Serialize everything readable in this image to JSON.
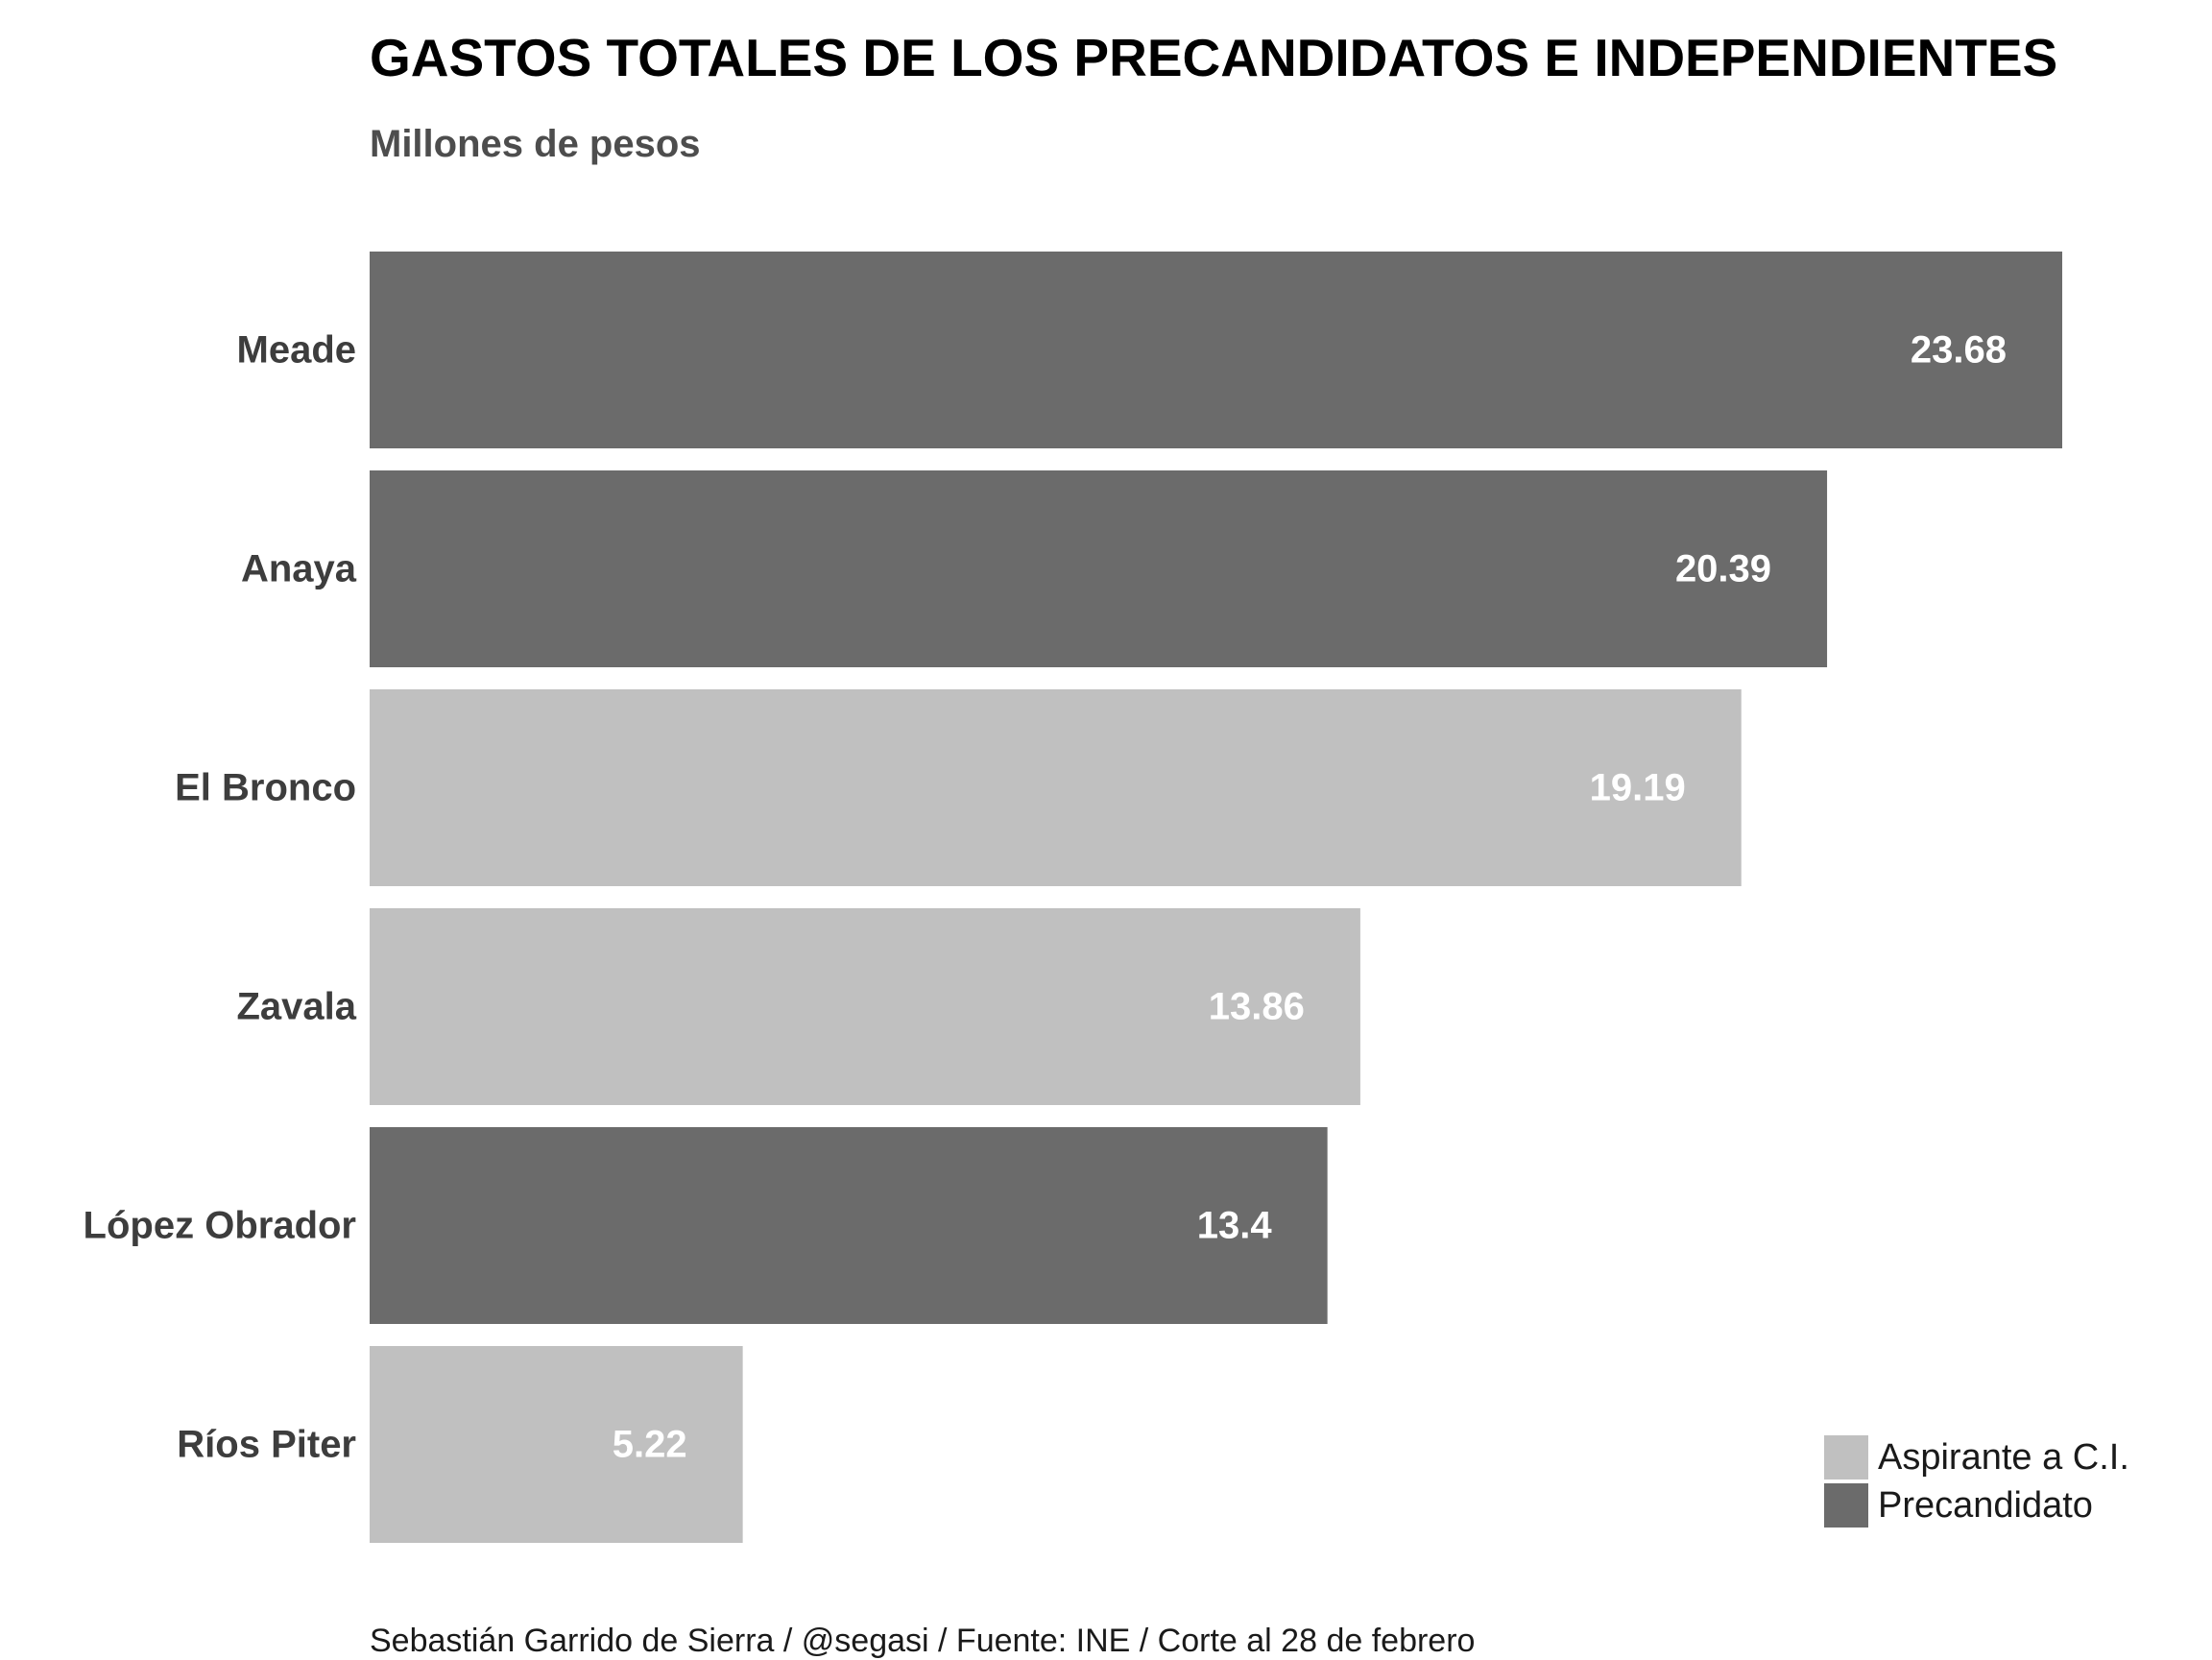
{
  "chart_data": {
    "type": "bar",
    "orientation": "horizontal",
    "title": "GASTOS TOTALES DE LOS PRECANDIDATOS E INDEPENDIENTES",
    "subtitle": "Millones de pesos",
    "caption": "Sebastián Garrido de Sierra / @segasi / Fuente: INE / Corte al 28 de febrero",
    "categories": [
      "Meade",
      "Anaya",
      "El Bronco",
      "Zavala",
      "López Obrador",
      "Ríos Piter"
    ],
    "values": [
      23.68,
      20.39,
      19.19,
      13.86,
      13.4,
      5.22
    ],
    "value_labels": [
      "23.68",
      "20.39",
      "19.19",
      "13.86",
      "13.4",
      "5.22"
    ],
    "groups": [
      "Precandidato",
      "Precandidato",
      "Aspirante a C.I.",
      "Aspirante a C.I.",
      "Precandidato",
      "Aspirante a C.I."
    ],
    "legend": {
      "position": "bottom-right",
      "entries": [
        {
          "name": "Aspirante a C.I.",
          "color": "#c0c0c0"
        },
        {
          "name": "Precandidato",
          "color": "#6b6b6b"
        }
      ]
    },
    "xlim": [
      0,
      23.68
    ],
    "grid": false
  }
}
